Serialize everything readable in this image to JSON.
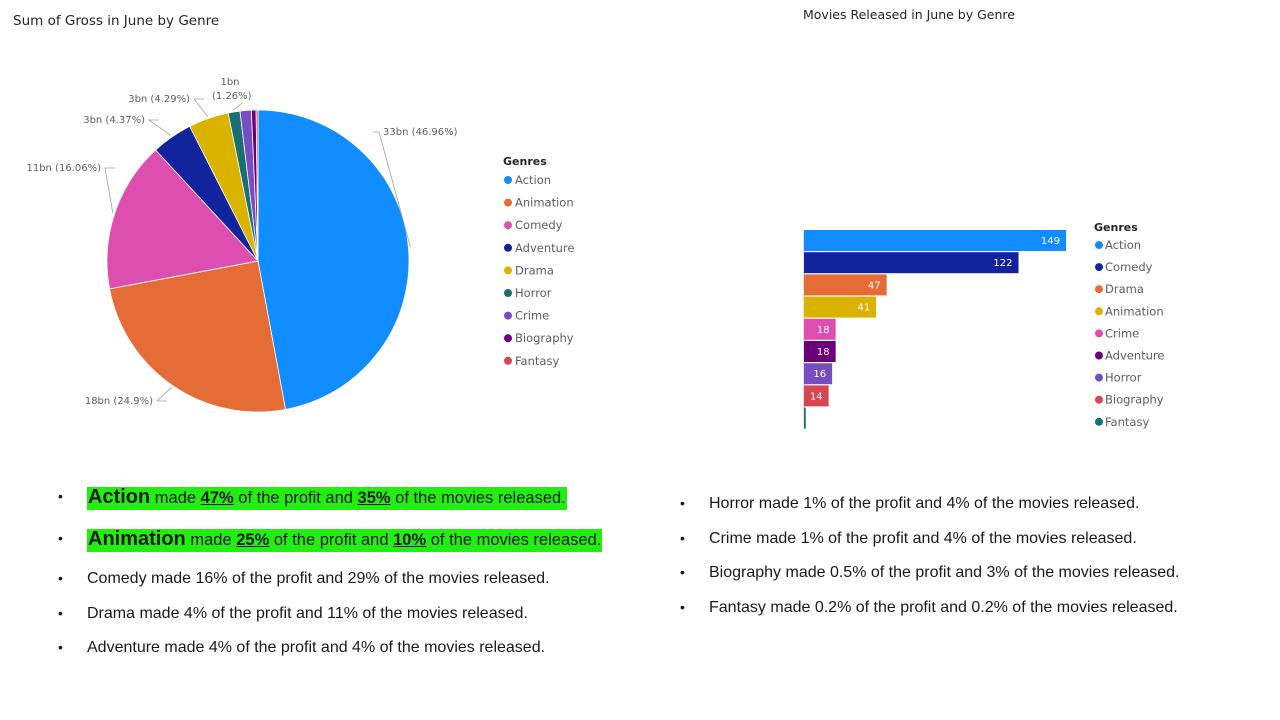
{
  "chart_data": [
    {
      "type": "pie",
      "title": "Sum of Gross in June by Genre",
      "legend_title": "Genres",
      "legend_position": "right",
      "slices": [
        {
          "name": "Action",
          "value": 46.96,
          "label": "33bn (46.96%)",
          "color": "#118DFF"
        },
        {
          "name": "Animation",
          "value": 24.9,
          "label": "18bn (24.9%)",
          "color": "#E66C37"
        },
        {
          "name": "Comedy",
          "value": 16.06,
          "label": "11bn (16.06%)",
          "color": "#DD4EB0"
        },
        {
          "name": "Adventure",
          "value": 4.37,
          "label": "3bn (4.37%)",
          "color": "#12239E"
        },
        {
          "name": "Drama",
          "value": 4.29,
          "label": "3bn (4.29%)",
          "color": "#D9B300"
        },
        {
          "name": "Horror",
          "value": 1.26,
          "label": "1bn (1.26%)",
          "color": "#1A6F73"
        },
        {
          "name": "Crime",
          "value": 1.2,
          "label": "",
          "color": "#744EC2"
        },
        {
          "name": "Biography",
          "value": 0.5,
          "label": "",
          "color": "#6B007B"
        },
        {
          "name": "Fantasy",
          "value": 0.2,
          "label": "",
          "color": "#D64550"
        }
      ]
    },
    {
      "type": "bar",
      "orientation": "horizontal",
      "title": "Movies Released in June by Genre",
      "legend_title": "Genres",
      "legend_position": "right",
      "categories": [
        "Action",
        "Comedy",
        "Drama",
        "Animation",
        "Crime",
        "Adventure",
        "Horror",
        "Biography",
        "Fantasy"
      ],
      "values": [
        149,
        122,
        47,
        41,
        18,
        18,
        16,
        14,
        1
      ],
      "data_labels": [
        "149",
        "122",
        "47",
        "41",
        "18",
        "18",
        "16",
        "14",
        ""
      ],
      "colors": [
        "#118DFF",
        "#12239E",
        "#E66C37",
        "#D9B300",
        "#DD4EB0",
        "#6B007B",
        "#744EC2",
        "#D64550",
        "#1A6F73"
      ],
      "xlim": [
        0,
        149
      ]
    }
  ],
  "notes": {
    "bullet_symbol": "•",
    "left": [
      {
        "genre": "Action",
        "t1": " made ",
        "p1": "47%",
        "t2": " of the profit and ",
        "p2": "35%",
        "t3": " of the movies released."
      },
      {
        "genre": "Animation",
        "t1": " made ",
        "p1": "25%",
        "t2": " of the profit and ",
        "p2": "10%",
        "t3": " of the movies released."
      },
      {
        "text": "Comedy made 16% of the profit and 29% of the movies released."
      },
      {
        "text": "Drama made 4% of the profit and 11% of the movies released."
      },
      {
        "text": "Adventure made 4% of the profit and 4% of the movies released."
      }
    ],
    "right": [
      {
        "text": "Horror made 1% of the profit and 4% of the movies released."
      },
      {
        "text": "Crime made 1% of the profit and 4% of the movies released."
      },
      {
        "text": "Biography made 0.5% of the profit and 3% of  the movies released."
      },
      {
        "text": "Fantasy made 0.2% of the profit and 0.2% of the movies released."
      }
    ]
  }
}
